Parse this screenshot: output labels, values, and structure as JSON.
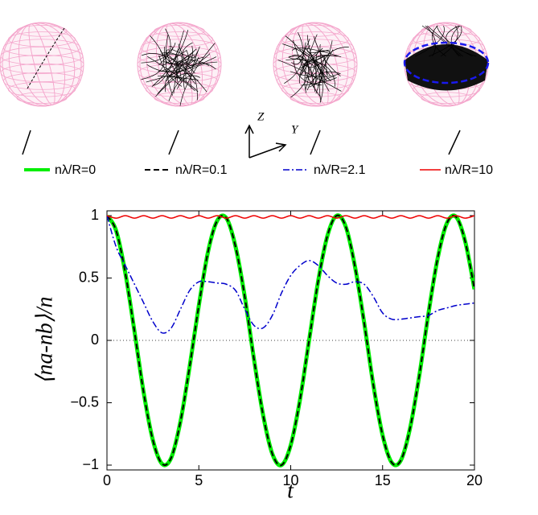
{
  "chart_data": {
    "type": "line",
    "x": [
      0,
      0.5,
      1,
      1.5,
      2,
      2.5,
      3,
      3.5,
      4,
      4.5,
      5,
      5.5,
      6,
      6.5,
      7,
      7.5,
      8,
      8.5,
      9,
      9.5,
      10,
      10.5,
      11,
      11.5,
      12,
      12.5,
      13,
      13.5,
      14,
      14.5,
      15,
      15.5,
      16,
      16.5,
      17,
      17.5,
      18,
      18.5,
      19,
      19.5,
      20
    ],
    "series": [
      {
        "name": "nλ/R=0",
        "color": "#00ee00",
        "style": "solid",
        "width": 5,
        "values": [
          1,
          0.88,
          0.54,
          0.07,
          -0.42,
          -0.8,
          -0.99,
          -0.94,
          -0.65,
          -0.21,
          0.28,
          0.71,
          0.96,
          0.98,
          0.75,
          0.35,
          -0.15,
          -0.6,
          -0.91,
          -1,
          -0.84,
          -0.48,
          0,
          0.48,
          0.84,
          1,
          0.91,
          0.59,
          0.14,
          -0.36,
          -0.76,
          -0.98,
          -0.96,
          -0.7,
          -0.28,
          0.22,
          0.66,
          0.94,
          0.99,
          0.79,
          0.41
        ]
      },
      {
        "name": "nλ/R=0.1",
        "color": "#000000",
        "style": "dashed",
        "width": 2,
        "values": [
          1,
          0.88,
          0.54,
          0.07,
          -0.42,
          -0.8,
          -0.99,
          -0.94,
          -0.65,
          -0.21,
          0.28,
          0.71,
          0.96,
          0.98,
          0.75,
          0.35,
          -0.15,
          -0.6,
          -0.91,
          -1,
          -0.84,
          -0.48,
          0,
          0.48,
          0.84,
          1,
          0.91,
          0.59,
          0.14,
          -0.36,
          -0.76,
          -0.98,
          -0.96,
          -0.7,
          -0.28,
          0.22,
          0.66,
          0.94,
          0.99,
          0.79,
          0.41
        ]
      },
      {
        "name": "nλ/R=2.1",
        "color": "#0000cc",
        "style": "dashdot",
        "width": 1.5,
        "values": [
          1,
          0.75,
          0.6,
          0.45,
          0.3,
          0.15,
          0.06,
          0.1,
          0.25,
          0.4,
          0.47,
          0.47,
          0.46,
          0.45,
          0.4,
          0.25,
          0.12,
          0.1,
          0.2,
          0.38,
          0.52,
          0.6,
          0.64,
          0.6,
          0.52,
          0.46,
          0.45,
          0.47,
          0.45,
          0.35,
          0.22,
          0.17,
          0.17,
          0.18,
          0.19,
          0.2,
          0.24,
          0.26,
          0.28,
          0.29,
          0.3
        ]
      },
      {
        "name": "nλ/R=10",
        "color": "#ee0000",
        "style": "solid",
        "width": 1.5,
        "values": [
          1,
          0.98,
          1,
          0.98,
          1,
          0.98,
          1,
          0.98,
          1,
          0.98,
          1,
          0.98,
          1,
          0.98,
          1,
          0.98,
          1,
          0.98,
          1,
          0.98,
          1,
          0.98,
          1,
          0.98,
          1,
          0.98,
          1,
          0.98,
          1,
          0.98,
          1,
          0.98,
          1,
          0.98,
          1,
          0.98,
          1,
          0.98,
          1,
          0.98,
          1
        ]
      }
    ],
    "xlabel": "t",
    "ylabel": "⟨na-nb⟩/n",
    "xlim": [
      0,
      20
    ],
    "xticks": [
      0,
      5,
      10,
      15,
      20
    ],
    "ylim": [
      -1,
      1
    ],
    "yticks": [
      {
        "value": -1,
        "label": "−1"
      },
      {
        "value": -0.5,
        "label": "−0.5"
      },
      0,
      0.5,
      1
    ],
    "zero_line": true,
    "annotations": [
      "Z",
      "Y"
    ]
  }
}
